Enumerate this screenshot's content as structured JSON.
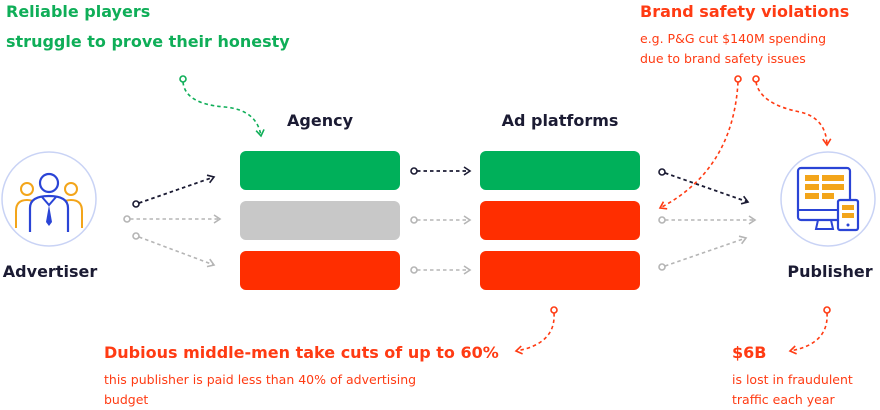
{
  "top_left_note": {
    "line1": "Reliable players",
    "line2": "struggle to prove their honesty"
  },
  "top_right_note": {
    "title": "Brand safety violations",
    "line1": "e.g. P&G cut $140M spending",
    "line2": "due to brand safety issues"
  },
  "columns": {
    "agency": "Agency",
    "ad_platforms": "Ad platforms"
  },
  "nodes": {
    "advertiser": "Advertiser",
    "publisher": "Publisher"
  },
  "bottom_middle_note": {
    "title": "Dubious middle-men take cuts of up to 60%",
    "line1": "this publisher is paid less than 40% of advertising",
    "line2": "budget"
  },
  "bottom_right_note": {
    "title": "$6B",
    "line1": "is lost in fraudulent",
    "line2": "traffic each year"
  },
  "colors": {
    "green": "#00b05a",
    "gray": "#c8c8c8",
    "red": "#ff2e00",
    "navy": "#1b1b33",
    "accent_red": "#ff3b13",
    "accent_green": "#0fae58",
    "circle_border": "#c9d3f5",
    "advertiser_icon": "#2a44d6",
    "advertiser_secondary": "#f3a51a",
    "publisher_icon": "#2a44d6",
    "publisher_screen": "#f3a51a"
  },
  "icons": {
    "advertiser": "people-group-icon",
    "publisher": "devices-icon"
  }
}
